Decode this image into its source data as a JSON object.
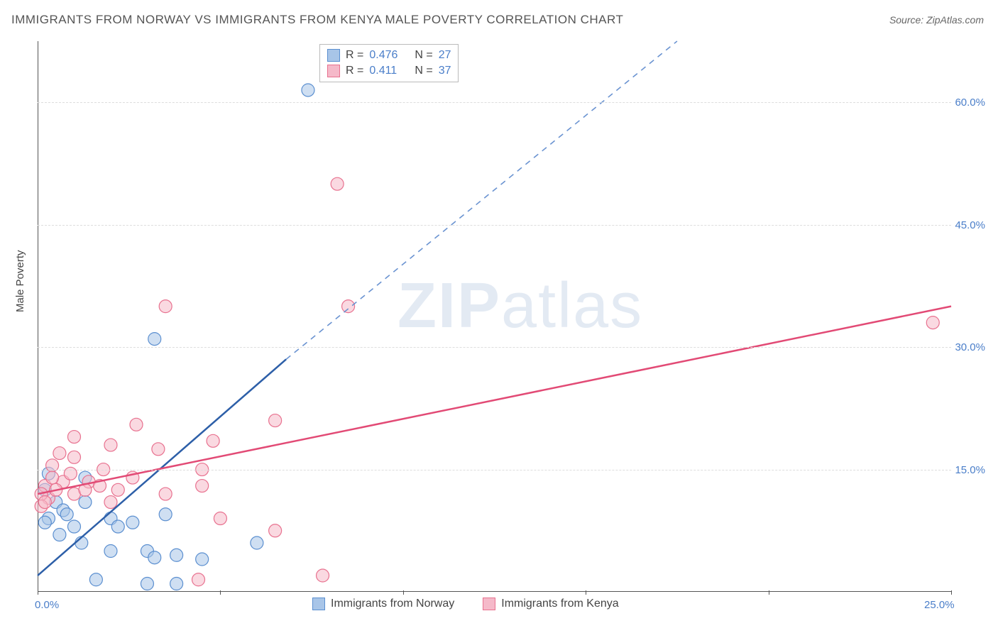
{
  "title": "IMMIGRANTS FROM NORWAY VS IMMIGRANTS FROM KENYA MALE POVERTY CORRELATION CHART",
  "source": "Source: ZipAtlas.com",
  "y_axis_label": "Male Poverty",
  "watermark": {
    "bold": "ZIP",
    "rest": "atlas"
  },
  "chart": {
    "type": "scatter",
    "background_color": "#ffffff",
    "grid_color": "#dddddd",
    "axis_color": "#555555",
    "xlim": [
      0,
      25
    ],
    "ylim": [
      0,
      67.5
    ],
    "y_ticks": [
      15.0,
      30.0,
      45.0,
      60.0
    ],
    "y_tick_labels": [
      "15.0%",
      "30.0%",
      "45.0%",
      "60.0%"
    ],
    "x_tick_positions": [
      0,
      5,
      10,
      15,
      20,
      25
    ],
    "x_tick_labels": {
      "first": "0.0%",
      "last": "25.0%"
    },
    "series": [
      {
        "name": "norway",
        "label": "Immigrants from Norway",
        "fill_color": "#a8c5e8",
        "stroke_color": "#5b8fd0",
        "point_opacity": 0.55,
        "line_color": "#2d5fa8",
        "line_width": 2.5,
        "dash_color": "#6a93d1",
        "R": "0.476",
        "N": "27",
        "points": [
          [
            7.4,
            61.5
          ],
          [
            3.2,
            31.0
          ],
          [
            1.3,
            14.0
          ],
          [
            0.3,
            14.5
          ],
          [
            0.2,
            12.5
          ],
          [
            0.5,
            11.0
          ],
          [
            1.3,
            11.0
          ],
          [
            0.7,
            10.0
          ],
          [
            0.8,
            9.5
          ],
          [
            0.3,
            9.0
          ],
          [
            0.2,
            8.5
          ],
          [
            1.0,
            8.0
          ],
          [
            3.5,
            9.5
          ],
          [
            2.0,
            9.0
          ],
          [
            2.2,
            8.0
          ],
          [
            2.6,
            8.5
          ],
          [
            0.6,
            7.0
          ],
          [
            1.2,
            6.0
          ],
          [
            2.0,
            5.0
          ],
          [
            3.0,
            5.0
          ],
          [
            3.2,
            4.2
          ],
          [
            3.8,
            4.5
          ],
          [
            4.5,
            4.0
          ],
          [
            6.0,
            6.0
          ],
          [
            1.6,
            1.5
          ],
          [
            3.0,
            1.0
          ],
          [
            3.8,
            1.0
          ]
        ],
        "trend": {
          "x1": 0,
          "y1": 2.0,
          "x2": 6.8,
          "y2": 28.5,
          "dash_x2": 17.5,
          "dash_y2": 67.5
        }
      },
      {
        "name": "kenya",
        "label": "Immigrants from Kenya",
        "fill_color": "#f5b9c9",
        "stroke_color": "#e8718f",
        "point_opacity": 0.55,
        "line_color": "#e24a75",
        "line_width": 2.5,
        "R": "0.411",
        "N": "37",
        "points": [
          [
            8.2,
            50.0
          ],
          [
            3.5,
            35.0
          ],
          [
            8.5,
            35.0
          ],
          [
            24.5,
            33.0
          ],
          [
            2.7,
            20.5
          ],
          [
            1.0,
            19.0
          ],
          [
            6.5,
            21.0
          ],
          [
            4.8,
            18.5
          ],
          [
            2.0,
            18.0
          ],
          [
            3.3,
            17.5
          ],
          [
            0.6,
            17.0
          ],
          [
            0.4,
            15.5
          ],
          [
            1.8,
            15.0
          ],
          [
            4.5,
            15.0
          ],
          [
            0.2,
            13.0
          ],
          [
            1.4,
            13.5
          ],
          [
            2.6,
            14.0
          ],
          [
            4.5,
            13.0
          ],
          [
            1.0,
            12.0
          ],
          [
            0.3,
            11.5
          ],
          [
            0.1,
            12.0
          ],
          [
            0.7,
            13.5
          ],
          [
            1.0,
            16.5
          ],
          [
            0.5,
            12.5
          ],
          [
            2.0,
            11.0
          ],
          [
            5.0,
            9.0
          ],
          [
            6.5,
            7.5
          ],
          [
            4.4,
            1.5
          ],
          [
            7.8,
            2.0
          ],
          [
            0.1,
            10.5
          ],
          [
            0.4,
            14.0
          ],
          [
            1.3,
            12.5
          ],
          [
            0.9,
            14.5
          ],
          [
            1.7,
            13.0
          ],
          [
            0.2,
            11.0
          ],
          [
            3.5,
            12.0
          ],
          [
            2.2,
            12.5
          ]
        ],
        "trend": {
          "x1": 0,
          "y1": 12.0,
          "x2": 25,
          "y2": 35.0
        }
      }
    ]
  },
  "legend_top_prefix": "R =",
  "legend_top_n_prefix": "N ="
}
